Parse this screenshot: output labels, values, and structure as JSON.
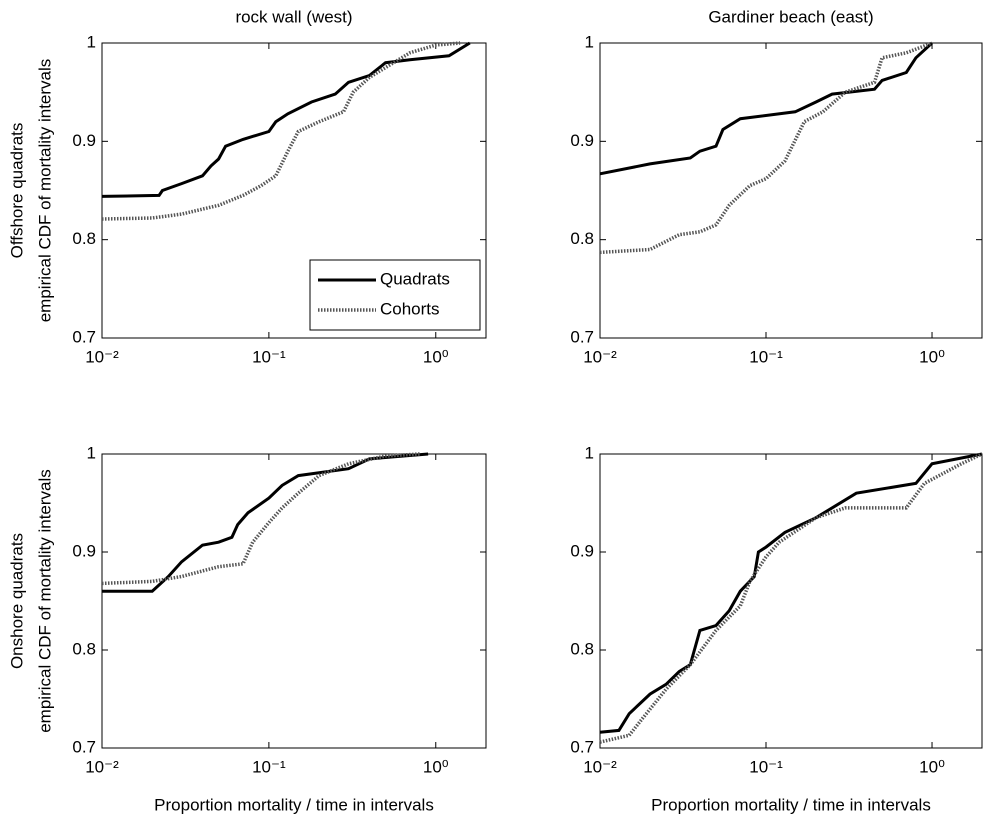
{
  "chart_data": [
    {
      "type": "line",
      "title": "rock wall (west)",
      "ylabel": [
        "Offshore quadrats",
        "empirical CDF of mortality intervals"
      ],
      "xscale": "log",
      "xlim": [
        0.01,
        2
      ],
      "ylim": [
        0.7,
        1
      ],
      "xticks": [
        {
          "value": 0.01,
          "label": "10⁻²"
        },
        {
          "value": 0.1,
          "label": "10⁻¹"
        },
        {
          "value": 1,
          "label": "10⁰"
        }
      ],
      "yticks": [
        0.7,
        0.8,
        0.9,
        1
      ],
      "legend": "lower right",
      "series": [
        {
          "name": "Quadrats",
          "color": "#000000",
          "style": "solid",
          "x": [
            0.01,
            0.022,
            0.023,
            0.03,
            0.04,
            0.045,
            0.05,
            0.055,
            0.07,
            0.1,
            0.11,
            0.13,
            0.18,
            0.25,
            0.3,
            0.4,
            0.5,
            0.7,
            1.2,
            1.6
          ],
          "values": [
            0.844,
            0.845,
            0.85,
            0.857,
            0.865,
            0.875,
            0.882,
            0.895,
            0.902,
            0.91,
            0.92,
            0.928,
            0.94,
            0.948,
            0.96,
            0.967,
            0.98,
            0.983,
            0.987,
            1.0
          ]
        },
        {
          "name": "Cohorts",
          "color": "#555555",
          "style": "dotted",
          "x": [
            0.01,
            0.02,
            0.03,
            0.05,
            0.07,
            0.09,
            0.11,
            0.13,
            0.15,
            0.2,
            0.28,
            0.32,
            0.4,
            0.5,
            0.7,
            1.0,
            1.4
          ],
          "values": [
            0.821,
            0.822,
            0.826,
            0.835,
            0.845,
            0.855,
            0.865,
            0.89,
            0.91,
            0.92,
            0.93,
            0.95,
            0.965,
            0.975,
            0.99,
            0.998,
            1.0
          ]
        }
      ]
    },
    {
      "type": "line",
      "title": "Gardiner beach (east)",
      "xscale": "log",
      "xlim": [
        0.01,
        2
      ],
      "ylim": [
        0.7,
        1
      ],
      "xticks": [
        {
          "value": 0.01,
          "label": "10⁻²"
        },
        {
          "value": 0.1,
          "label": "10⁻¹"
        },
        {
          "value": 1,
          "label": "10⁰"
        }
      ],
      "yticks": [
        0.7,
        0.8,
        0.9,
        1
      ],
      "series": [
        {
          "color": "#000000",
          "style": "solid",
          "x": [
            0.01,
            0.02,
            0.035,
            0.04,
            0.05,
            0.055,
            0.07,
            0.15,
            0.2,
            0.25,
            0.45,
            0.5,
            0.7,
            0.8,
            1.0
          ],
          "values": [
            0.867,
            0.877,
            0.883,
            0.89,
            0.895,
            0.912,
            0.923,
            0.93,
            0.94,
            0.948,
            0.953,
            0.962,
            0.97,
            0.985,
            1.0
          ]
        },
        {
          "color": "#555555",
          "style": "dotted",
          "x": [
            0.01,
            0.02,
            0.03,
            0.04,
            0.05,
            0.06,
            0.08,
            0.1,
            0.13,
            0.17,
            0.22,
            0.3,
            0.45,
            0.5,
            0.7,
            1.0
          ],
          "values": [
            0.787,
            0.79,
            0.805,
            0.808,
            0.815,
            0.835,
            0.855,
            0.862,
            0.88,
            0.92,
            0.93,
            0.95,
            0.96,
            0.985,
            0.99,
            1.0
          ]
        }
      ]
    },
    {
      "type": "line",
      "ylabel": [
        "Onshore quadrats",
        "empirical CDF of mortality intervals"
      ],
      "xlabel": "Proportion mortality / time in intervals",
      "xscale": "log",
      "xlim": [
        0.01,
        2
      ],
      "ylim": [
        0.7,
        1
      ],
      "xticks": [
        {
          "value": 0.01,
          "label": "10⁻²"
        },
        {
          "value": 0.1,
          "label": "10⁻¹"
        },
        {
          "value": 1,
          "label": "10⁰"
        }
      ],
      "yticks": [
        0.7,
        0.8,
        0.9,
        1
      ],
      "series": [
        {
          "color": "#000000",
          "style": "solid",
          "x": [
            0.01,
            0.02,
            0.025,
            0.03,
            0.04,
            0.05,
            0.06,
            0.065,
            0.075,
            0.1,
            0.12,
            0.15,
            0.3,
            0.4,
            0.9
          ],
          "values": [
            0.86,
            0.86,
            0.875,
            0.89,
            0.907,
            0.91,
            0.915,
            0.928,
            0.94,
            0.955,
            0.968,
            0.978,
            0.985,
            0.995,
            1.0
          ]
        },
        {
          "color": "#555555",
          "style": "dotted",
          "x": [
            0.01,
            0.02,
            0.03,
            0.05,
            0.07,
            0.08,
            0.1,
            0.12,
            0.15,
            0.2,
            0.3,
            0.5,
            0.8
          ],
          "values": [
            0.868,
            0.87,
            0.875,
            0.885,
            0.888,
            0.91,
            0.93,
            0.945,
            0.96,
            0.978,
            0.99,
            0.998,
            1.0
          ]
        }
      ]
    },
    {
      "type": "line",
      "xlabel": "Proportion mortality / time in intervals",
      "xscale": "log",
      "xlim": [
        0.01,
        2
      ],
      "ylim": [
        0.7,
        1
      ],
      "xticks": [
        {
          "value": 0.01,
          "label": "10⁻²"
        },
        {
          "value": 0.1,
          "label": "10⁻¹"
        },
        {
          "value": 1,
          "label": "10⁰"
        }
      ],
      "yticks": [
        0.7,
        0.8,
        0.9,
        1
      ],
      "series": [
        {
          "color": "#000000",
          "style": "solid",
          "x": [
            0.01,
            0.013,
            0.015,
            0.02,
            0.025,
            0.03,
            0.035,
            0.04,
            0.05,
            0.06,
            0.07,
            0.085,
            0.09,
            0.1,
            0.13,
            0.2,
            0.35,
            0.8,
            1.0,
            2.0
          ],
          "values": [
            0.716,
            0.718,
            0.735,
            0.755,
            0.765,
            0.778,
            0.785,
            0.82,
            0.825,
            0.84,
            0.86,
            0.875,
            0.9,
            0.905,
            0.92,
            0.935,
            0.96,
            0.97,
            0.99,
            1.0
          ]
        },
        {
          "color": "#555555",
          "style": "dotted",
          "x": [
            0.01,
            0.015,
            0.018,
            0.025,
            0.035,
            0.05,
            0.07,
            0.08,
            0.1,
            0.12,
            0.2,
            0.3,
            0.7,
            0.9,
            1.5,
            2.0
          ],
          "values": [
            0.706,
            0.713,
            0.73,
            0.76,
            0.785,
            0.82,
            0.845,
            0.87,
            0.895,
            0.91,
            0.935,
            0.945,
            0.945,
            0.97,
            0.99,
            1.0
          ]
        }
      ]
    }
  ]
}
